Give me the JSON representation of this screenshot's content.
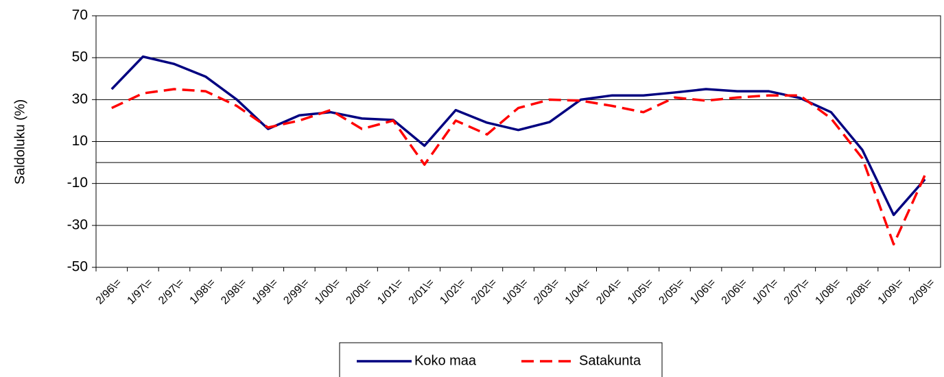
{
  "chart_data": {
    "type": "line",
    "y_label": "Saldoluku (%)",
    "categories": [
      "2/96\\=",
      "1/97\\=",
      "2/97\\=",
      "1/98\\=",
      "2/98\\=",
      "1/99\\=",
      "2/99\\=",
      "1/00\\=",
      "2/00\\=",
      "1/01\\=",
      "2/01\\=",
      "1/02\\=",
      "2/02\\=",
      "1/03\\=",
      "2/03\\=",
      "1/04\\=",
      "2/04\\=",
      "1/05\\=",
      "2/05\\=",
      "1/06\\=",
      "2/06\\=",
      "1/07\\=",
      "2/07\\=",
      "1/08\\=",
      "2/08\\=",
      "1/09\\=",
      "2/09\\="
    ],
    "series": [
      {
        "name": "Koko maa",
        "color": "#000080",
        "dashed": false,
        "values": [
          35,
          50.5,
          47,
          41,
          30,
          16,
          22.5,
          24,
          21,
          20.3,
          8,
          25,
          19,
          15.5,
          19.3,
          30,
          32,
          32,
          33.4,
          35,
          34,
          34,
          30.8,
          24,
          6,
          -25,
          -8
        ]
      },
      {
        "name": "Satakunta",
        "color": "#ff0000",
        "dashed": true,
        "values": [
          26,
          33,
          35,
          34,
          27,
          16.7,
          20,
          25,
          16,
          20,
          -1,
          20,
          13.4,
          26,
          30,
          29.5,
          27,
          24,
          31,
          29.5,
          31,
          32,
          32,
          21,
          2,
          -39,
          -6
        ]
      }
    ],
    "ylim": [
      -50,
      70
    ],
    "yticks": [
      -50,
      -30,
      -10,
      10,
      30,
      50,
      70
    ],
    "grid": true,
    "zeroline": true,
    "legend": "bottom"
  }
}
